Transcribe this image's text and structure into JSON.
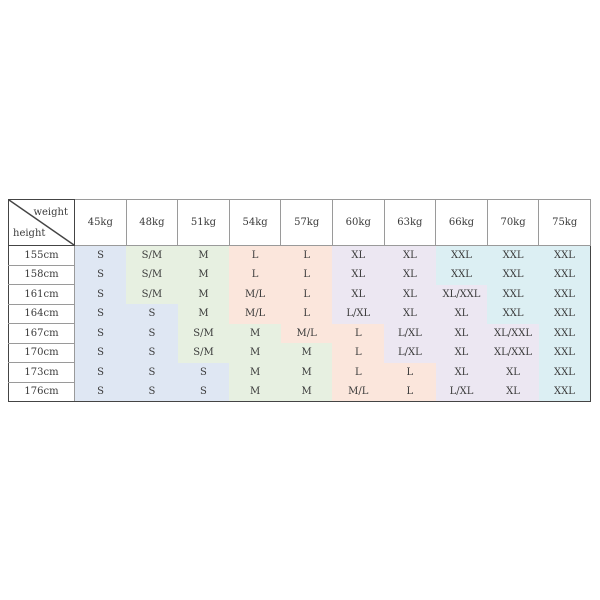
{
  "table": {
    "corner": {
      "top": "weight",
      "bottom": "height"
    },
    "columns": [
      "45kg",
      "48kg",
      "51kg",
      "54kg",
      "57kg",
      "60kg",
      "63kg",
      "66kg",
      "70kg",
      "75kg"
    ],
    "rows": [
      {
        "height": "155cm",
        "cells": [
          "S",
          "S/M",
          "M",
          "L",
          "L",
          "XL",
          "XL",
          "XXL",
          "XXL",
          "XXL"
        ]
      },
      {
        "height": "158cm",
        "cells": [
          "S",
          "S/M",
          "M",
          "L",
          "L",
          "XL",
          "XL",
          "XXL",
          "XXL",
          "XXL"
        ]
      },
      {
        "height": "161cm",
        "cells": [
          "S",
          "S/M",
          "M",
          "M/L",
          "L",
          "XL",
          "XL",
          "XL/XXL",
          "XXL",
          "XXL"
        ]
      },
      {
        "height": "164cm",
        "cells": [
          "S",
          "S",
          "M",
          "M/L",
          "L",
          "L/XL",
          "XL",
          "XL",
          "XXL",
          "XXL"
        ]
      },
      {
        "height": "167cm",
        "cells": [
          "S",
          "S",
          "S/M",
          "M",
          "M/L",
          "L",
          "L/XL",
          "XL",
          "XL/XXL",
          "XXL"
        ]
      },
      {
        "height": "170cm",
        "cells": [
          "S",
          "S",
          "S/M",
          "M",
          "M",
          "L",
          "L/XL",
          "XL",
          "XL/XXL",
          "XXL"
        ]
      },
      {
        "height": "173cm",
        "cells": [
          "S",
          "S",
          "S",
          "M",
          "M",
          "L",
          "L",
          "XL",
          "XL",
          "XXL"
        ]
      },
      {
        "height": "176cm",
        "cells": [
          "S",
          "S",
          "S",
          "M",
          "M",
          "M/L",
          "L",
          "L/XL",
          "XL",
          "XXL"
        ]
      }
    ],
    "colors": {
      "S": "#dfe7f3",
      "S/M": "#e7f0e1",
      "M": "#e7f0e1",
      "M/L": "#fbe6dc",
      "L": "#fbe6dc",
      "L/XL": "#ece7f2",
      "XL": "#ece7f2",
      "XL/XXL": "#ece7f2",
      "XXL": "#dceff3"
    }
  }
}
